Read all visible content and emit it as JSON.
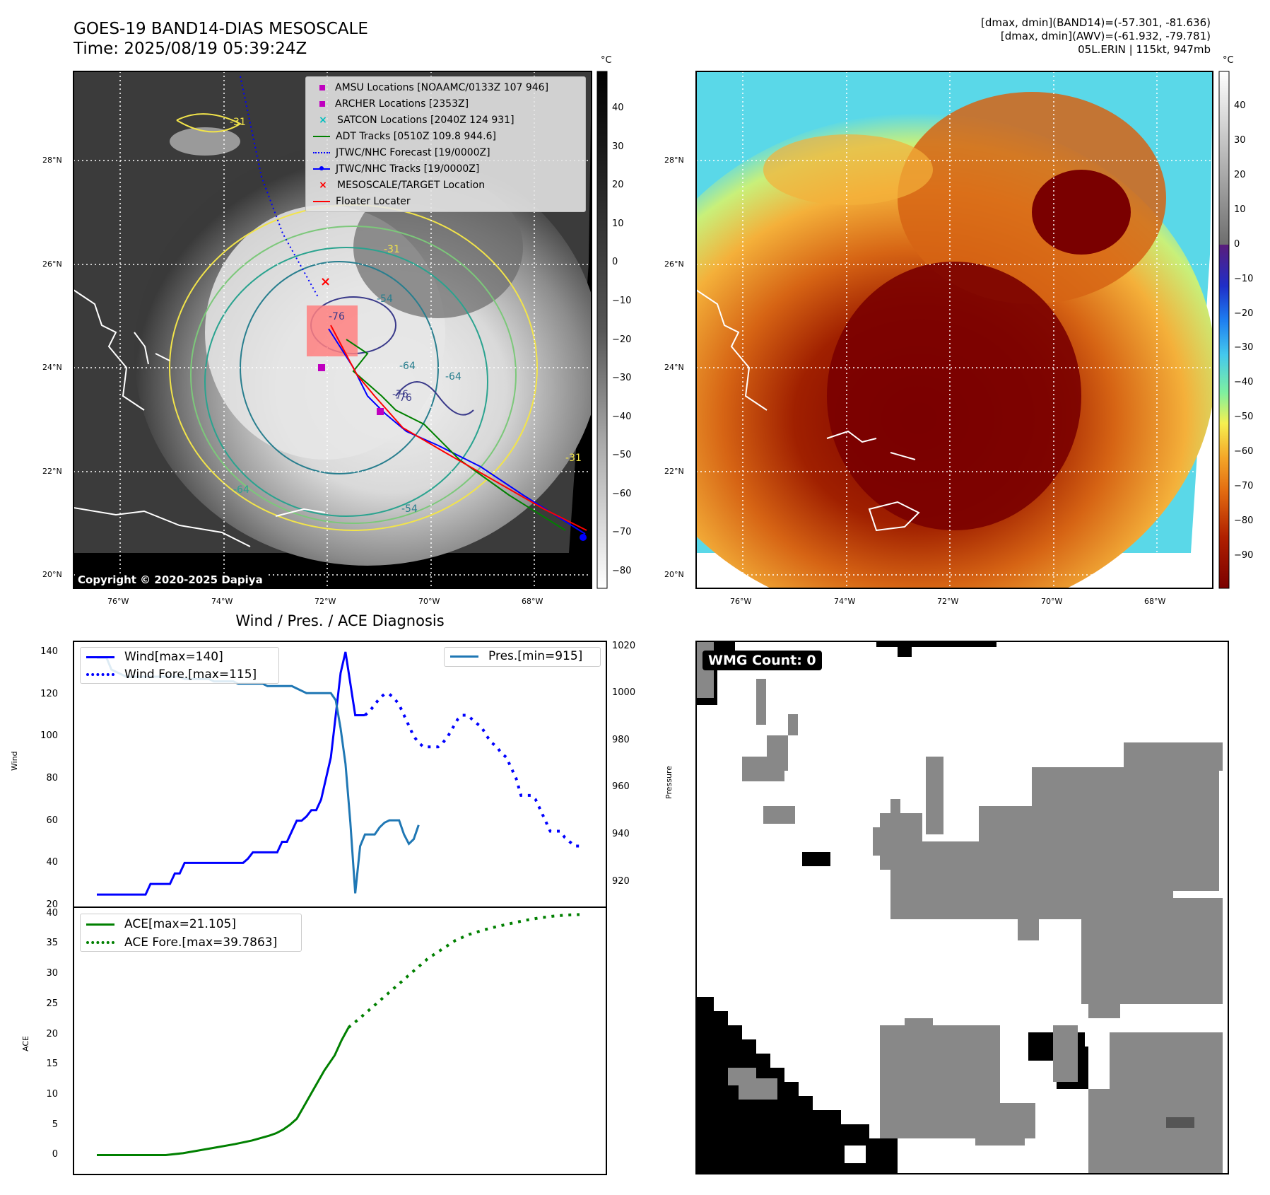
{
  "header": {
    "title_line1": "GOES-19 BAND14-DIAS MESOSCALE",
    "title_line2": "Time: 2025/08/19 05:39:24Z",
    "meta_line1": "[dmax, dmin](BAND14)=(-57.301, -81.636)",
    "meta_line2": "[dmax, dmin](AWV)=(-61.932, -79.781)",
    "meta_line3": "05L.ERIN | 115kt, 947mb"
  },
  "maps": {
    "lat_labels": [
      "28°N",
      "26°N",
      "24°N",
      "22°N",
      "20°N"
    ],
    "lon_labels": [
      "76°W",
      "74°W",
      "72°W",
      "70°W",
      "68°W"
    ],
    "copyright": "Copyright © 2020-2025 Dapiya",
    "gray_cbar": {
      "unit": "°C",
      "ticks": [
        "40",
        "30",
        "20",
        "10",
        "0",
        "−10",
        "−20",
        "−30",
        "−40",
        "−50",
        "−60",
        "−70",
        "−80"
      ]
    },
    "color_cbar": {
      "unit": "°C",
      "ticks": [
        "40",
        "30",
        "20",
        "10",
        "0",
        "−10",
        "−20",
        "−30",
        "−40",
        "−50",
        "−60",
        "−70",
        "−80",
        "−90"
      ]
    },
    "contour_labels": [
      "-31",
      "-31",
      "-54",
      "-76",
      "-64",
      "-76",
      "-64",
      "-64",
      "-54",
      "-31",
      "-76"
    ],
    "legend": [
      {
        "label": "AMSU Locations [NOAAMC/0133Z 107 946]",
        "marker": "square",
        "color": "#bf00bf"
      },
      {
        "label": "ARCHER Locations [2353Z]",
        "marker": "square",
        "color": "#bf00bf"
      },
      {
        "label": "SATCON Locations [2040Z 124 931]",
        "marker": "x",
        "color": "#00bfbf"
      },
      {
        "label": "ADT Tracks [0510Z 109.8 944.6]",
        "marker": "line",
        "color": "#008000"
      },
      {
        "label": "JTWC/NHC Forecast [19/0000Z]",
        "marker": "dotted",
        "color": "#0000ff"
      },
      {
        "label": "JTWC/NHC Tracks [19/0000Z]",
        "marker": "line-dot",
        "color": "#0000ff"
      },
      {
        "label": "MESOSCALE/TARGET Location",
        "marker": "x",
        "color": "#ff0000"
      },
      {
        "label": "Floater Locater",
        "marker": "line",
        "color": "#ff0000"
      }
    ]
  },
  "diagnosis": {
    "title": "Wind / Pres. / ACE Diagnosis",
    "wind_ylabel": "Wind",
    "pres_ylabel": "Pressure",
    "ace_ylabel": "ACE",
    "legend_wind": "Wind[max=140]",
    "legend_wind_fore": "Wind Fore.[max=115]",
    "legend_pres": "Pres.[min=915]",
    "legend_ace": "ACE[max=21.105]",
    "legend_ace_fore": "ACE Fore.[max=39.7863]",
    "wind_ticks": [
      "140",
      "120",
      "100",
      "80",
      "60",
      "40",
      "20"
    ],
    "pres_ticks": [
      "1020",
      "1000",
      "980",
      "960",
      "940",
      "920"
    ],
    "ace_ticks": [
      "40",
      "35",
      "30",
      "25",
      "20",
      "15",
      "10",
      "5",
      "0"
    ]
  },
  "wmg": {
    "label": "WMG Count: 0"
  },
  "chart_data": [
    {
      "type": "line",
      "title": "Wind / Pres. / ACE Diagnosis",
      "ylabel": "Wind",
      "ylim": [
        20,
        145
      ],
      "series": [
        {
          "name": "Wind[max=140]",
          "style": "solid",
          "color": "#0000ff",
          "x": [
            0,
            1,
            2,
            3,
            4,
            5,
            6,
            7,
            8,
            9,
            10,
            11,
            12,
            13,
            14,
            15,
            16,
            17,
            18,
            19,
            20,
            21,
            22,
            23,
            24,
            25,
            26,
            27,
            28,
            29,
            30,
            31,
            32,
            33,
            34,
            35,
            36,
            37,
            38,
            39,
            40,
            41,
            42,
            43,
            44,
            45,
            46,
            47,
            48,
            49,
            50,
            51,
            52,
            53,
            54,
            55
          ],
          "values": [
            25,
            25,
            25,
            25,
            25,
            25,
            25,
            25,
            25,
            25,
            25,
            30,
            30,
            30,
            30,
            30,
            35,
            35,
            40,
            40,
            40,
            40,
            40,
            40,
            40,
            40,
            40,
            40,
            40,
            40,
            40,
            42,
            45,
            45,
            45,
            45,
            45,
            45,
            50,
            50,
            55,
            60,
            60,
            62,
            65,
            65,
            70,
            80,
            90,
            110,
            130,
            140,
            125,
            110,
            110,
            110
          ]
        },
        {
          "name": "Wind Fore.[max=115]",
          "style": "dotted",
          "color": "#0000ff",
          "x": [
            55,
            56,
            57,
            58,
            59,
            60,
            61,
            62,
            63,
            64,
            65,
            66,
            67,
            68,
            69,
            70,
            71,
            72,
            73,
            74,
            75,
            76,
            77,
            78,
            79,
            80,
            81,
            82,
            83,
            84,
            85,
            86,
            87,
            88,
            89,
            90,
            91,
            92,
            93,
            94,
            95,
            96,
            97,
            98,
            99
          ],
          "values": [
            110,
            112,
            115,
            118,
            120,
            120,
            118,
            115,
            110,
            105,
            100,
            97,
            95,
            95,
            95,
            95,
            97,
            100,
            104,
            108,
            110,
            110,
            108,
            106,
            104,
            100,
            97,
            95,
            92,
            90,
            85,
            80,
            72,
            72,
            72,
            70,
            65,
            60,
            55,
            55,
            55,
            52,
            50,
            48,
            48
          ]
        }
      ]
    },
    {
      "type": "line",
      "ylabel": "Pressure",
      "ylim": [
        910,
        1022
      ],
      "series": [
        {
          "name": "Pres.[min=915]",
          "style": "solid",
          "color": "#1f77b4",
          "x": [
            0,
            1,
            2,
            3,
            4,
            5,
            6,
            7,
            8,
            9,
            10,
            11,
            12,
            13,
            14,
            15,
            16,
            17,
            18,
            19,
            20,
            21,
            22,
            23,
            24,
            25,
            26,
            27,
            28,
            29,
            30,
            31,
            32,
            33,
            34,
            35,
            36,
            37,
            38,
            39,
            40,
            41,
            42,
            43,
            44,
            45,
            46,
            47,
            48,
            49,
            50,
            51,
            52,
            53,
            54,
            55,
            56,
            57,
            58,
            59,
            60,
            61,
            62,
            63,
            64,
            65,
            66
          ],
          "values": [
            1015,
            1015,
            1015,
            1010,
            1009,
            1008,
            1007,
            1007,
            1007,
            1007,
            1007,
            1007,
            1007,
            1007,
            1007,
            1007,
            1007,
            1007,
            1006,
            1006,
            1006,
            1006,
            1006,
            1006,
            1005,
            1005,
            1005,
            1005,
            1005,
            1004,
            1004,
            1004,
            1004,
            1004,
            1004,
            1003,
            1003,
            1003,
            1003,
            1003,
            1003,
            1002,
            1001,
            1000,
            1000,
            1000,
            1000,
            1000,
            1000,
            997,
            985,
            970,
            945,
            915,
            935,
            940,
            940,
            940,
            943,
            945,
            946,
            946,
            946,
            940,
            936,
            938,
            944
          ]
        }
      ]
    },
    {
      "type": "line",
      "ylabel": "ACE",
      "ylim": [
        -1,
        41
      ],
      "series": [
        {
          "name": "ACE[max=21.105]",
          "style": "solid",
          "color": "#008000",
          "x": [
            0,
            10,
            16,
            20,
            25,
            30,
            35,
            40,
            45,
            50,
            52,
            54,
            56,
            58,
            60,
            63,
            66,
            69,
            71,
            73
          ],
          "values": [
            0,
            0,
            0,
            0,
            0.3,
            0.8,
            1.3,
            1.8,
            2.4,
            3.2,
            3.6,
            4.2,
            5,
            6,
            8,
            11,
            14,
            16.5,
            19,
            21.1
          ]
        },
        {
          "name": "ACE Fore.[max=39.7863]",
          "style": "dotted",
          "color": "#008000",
          "x": [
            73,
            76,
            80,
            84,
            88,
            92,
            96,
            100,
            104,
            108,
            112,
            116,
            120,
            124,
            128,
            132,
            136,
            140
          ],
          "values": [
            21.1,
            22.5,
            24.5,
            26.5,
            28.5,
            30.5,
            32.5,
            34,
            35.5,
            36.5,
            37.2,
            37.8,
            38.3,
            38.8,
            39.2,
            39.5,
            39.7,
            39.79
          ]
        }
      ]
    }
  ]
}
